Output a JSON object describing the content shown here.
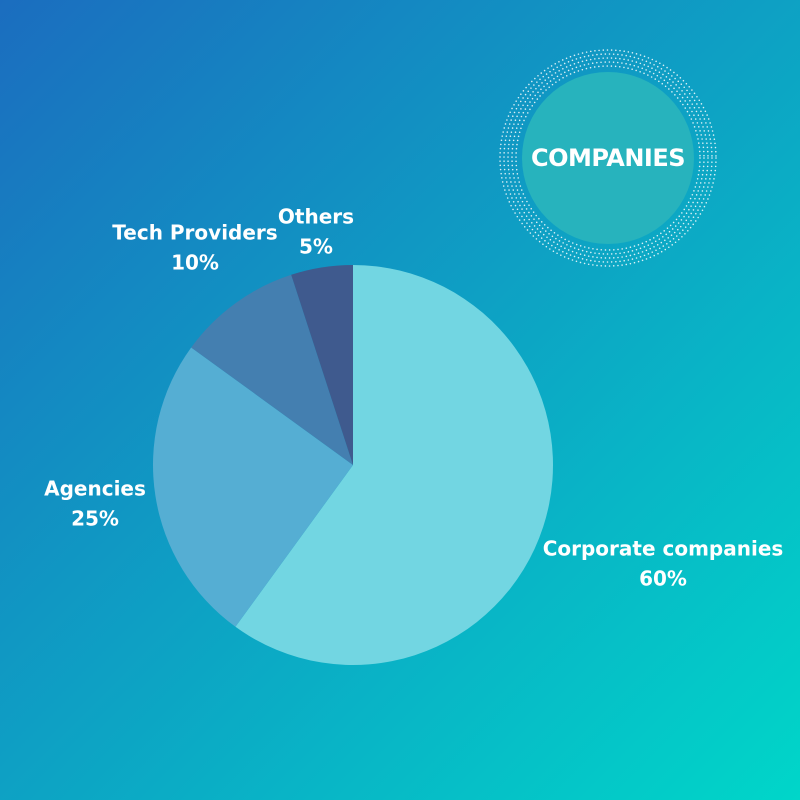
{
  "chart_data": {
    "type": "pie",
    "title": "COMPANIES",
    "categories": [
      "Corporate companies",
      "Agencies",
      "Tech Providers",
      "Others"
    ],
    "values": [
      60,
      25,
      10,
      5
    ],
    "value_labels": [
      "60%",
      "25%",
      "10%",
      "5%"
    ],
    "colors": [
      "#72d6e2",
      "#55aed3",
      "#447fb0",
      "#3f5a8e"
    ]
  }
}
